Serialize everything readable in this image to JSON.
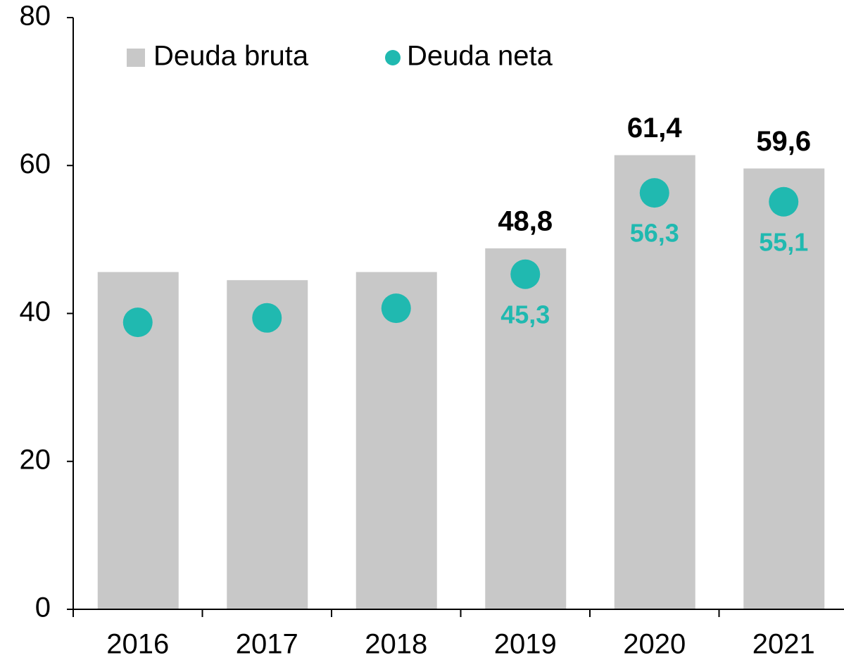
{
  "chart_data": {
    "type": "bar",
    "categories": [
      "2016",
      "2017",
      "2018",
      "2019",
      "2020",
      "2021"
    ],
    "series": [
      {
        "name": "Deuda bruta",
        "type": "bar",
        "color": "#c8c8c8",
        "values": [
          45.6,
          44.5,
          45.6,
          48.8,
          61.4,
          59.6
        ],
        "value_labels": [
          null,
          null,
          null,
          "48,8",
          "61,4",
          "59,6"
        ]
      },
      {
        "name": "Deuda neta",
        "type": "scatter",
        "color": "#20b9b0",
        "values": [
          38.8,
          39.4,
          40.7,
          45.3,
          56.3,
          55.1
        ],
        "value_labels": [
          null,
          null,
          null,
          "45,3",
          "56,3",
          "55,1"
        ]
      }
    ],
    "ylim": [
      0,
      80
    ],
    "yticks": [
      0,
      20,
      40,
      60,
      80
    ],
    "grid": false,
    "legend": "top-left"
  }
}
